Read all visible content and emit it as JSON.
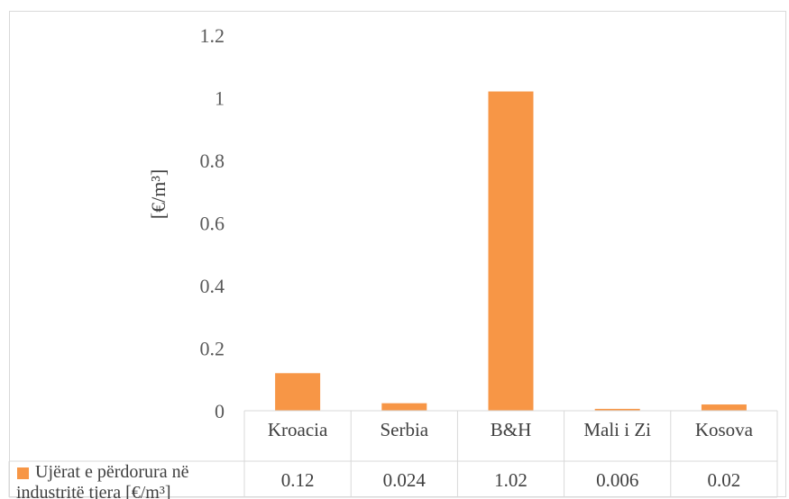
{
  "chart_data": {
    "type": "bar",
    "categories": [
      "Kroacia",
      "Serbia",
      "B&H",
      "Mali i Zi",
      "Kosova"
    ],
    "series": [
      {
        "name": "Ujërat e përdorura në industritë tjera [€/m³]",
        "legend_lines": [
          "Ujërat e përdorura në",
          "industritë tjera [€/m³]"
        ],
        "values": [
          0.12,
          0.024,
          1.02,
          0.006,
          0.02
        ],
        "value_labels": [
          "0.12",
          "0.024",
          "1.02",
          "0.006",
          "0.02"
        ],
        "color": "#f79646"
      }
    ],
    "title": "",
    "xlabel": "",
    "ylabel": "[€/m³]",
    "ylim": [
      0,
      1.2
    ],
    "yticks": [
      0,
      0.2,
      0.4,
      0.6,
      0.8,
      1,
      1.2
    ],
    "ytick_labels": [
      "0",
      "0.2",
      "0.4",
      "0.6",
      "0.8",
      "1",
      "1.2"
    ],
    "grid": false,
    "data_table": true,
    "legend_placement": "data-table-left"
  }
}
